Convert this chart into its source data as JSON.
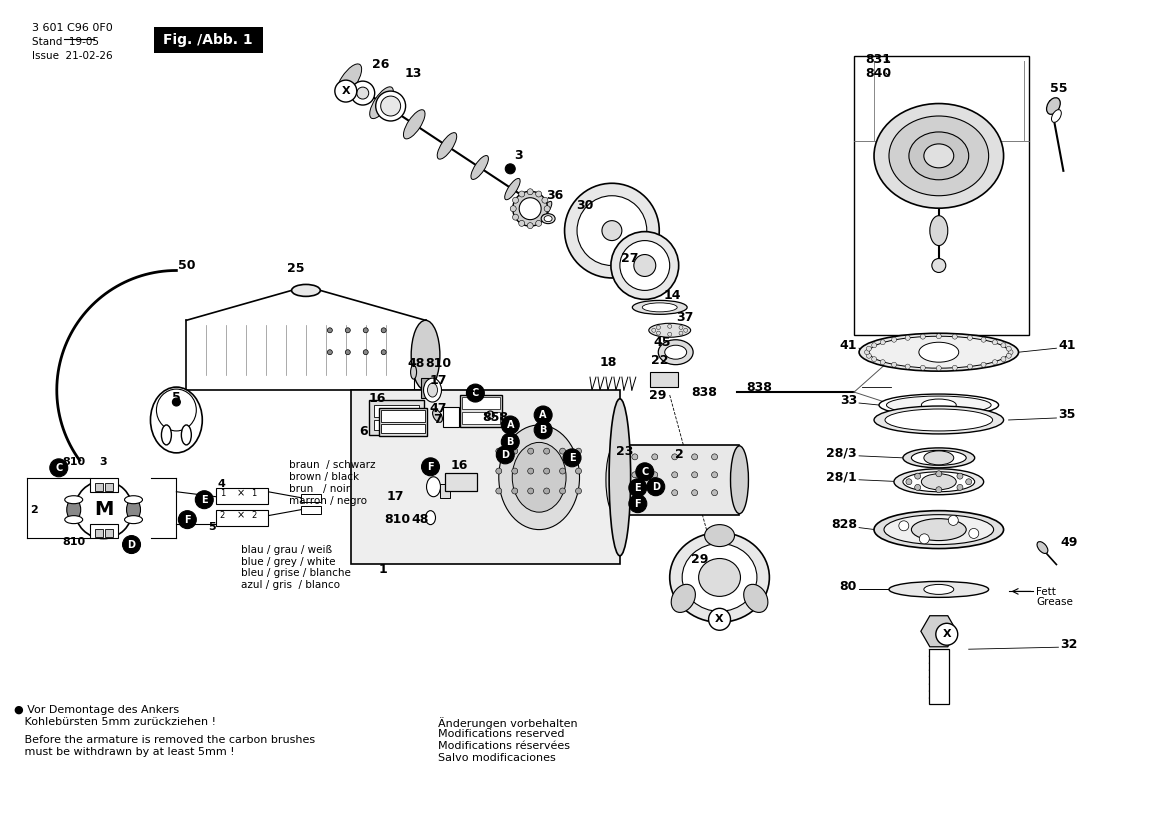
{
  "background_color": "#ffffff",
  "fig_width": 11.69,
  "fig_height": 8.26,
  "dpi": 100,
  "header_line1": "3 601 C96 0F0",
  "header_line2": "Stand  19-05",
  "header_line3": "Issue  21-02-26",
  "fig_label": "Fig. /Abb. 1",
  "bottom_notes": [
    "● Vor Demontage des Ankers",
    "   Kohlebürsten 5mm zurückziehen !",
    "",
    "   Before the armature is removed the carbon brushes",
    "   must be withdrawn by at least 5mm !"
  ],
  "change_notes": [
    "Änderungen vorbehalten",
    "Modifications reserved",
    "Modifications réservées",
    "Salvo modificaciones"
  ],
  "wiring_brown": [
    "braun  / schwarz",
    "brown / black",
    "brun   / noir",
    "marron / negro"
  ],
  "wiring_blue": [
    "blau / grau / weiß",
    "blue / grey / white",
    "bleu / grise / blanche",
    "azul / gris  / blanco"
  ]
}
